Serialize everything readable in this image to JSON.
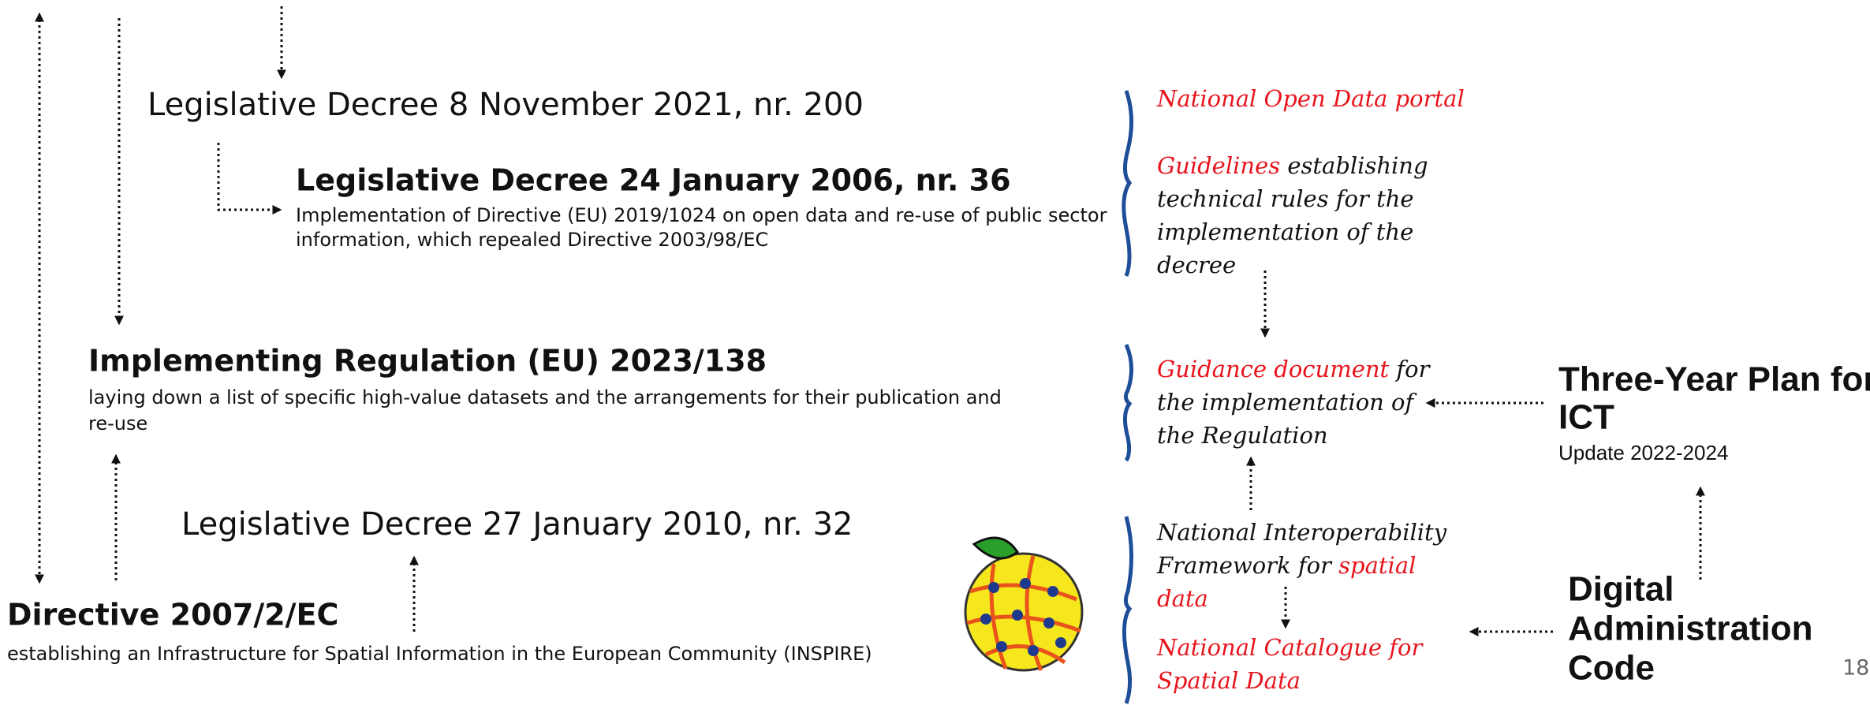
{
  "decree_2021": "Legislative Decree 8 November 2021, nr. 200",
  "decree_2006": {
    "title": "Legislative Decree 24 January 2006, nr. 36",
    "description": [
      "Implementation of Directive (EU) 2019/1024 on open data and re-use of public sector",
      "information, which repealed Directive 2003/98/EC"
    ]
  },
  "regulation": {
    "title": "Implementing Regulation (EU) 2023/138",
    "description": [
      "laying down a list of specific high-value datasets and the arrangements for their publication and",
      "re-use"
    ]
  },
  "decree_2010": "Legislative Decree 27 January 2010, nr. 32",
  "directive": {
    "title": "Directive 2007/2/EC",
    "description": "establishing an Infrastructure for Spatial Information in the European Community (INSPIRE)"
  },
  "notes": [
    [
      [
        {
          "text": "National Open Data portal",
          "color": "#e8141c"
        }
      ]
    ],
    [
      [
        {
          "text": "Guidelines",
          "color": "#e8141c"
        },
        {
          "text": " establishing",
          "color": "#111111"
        }
      ],
      [
        {
          "text": "technical rules for the",
          "color": "#111111"
        }
      ],
      [
        {
          "text": "implementation of the",
          "color": "#111111"
        }
      ],
      [
        {
          "text": "decree",
          "color": "#111111"
        }
      ]
    ],
    [
      [
        {
          "text": "Guidance document",
          "color": "#e8141c"
        },
        {
          "text": " for",
          "color": "#111111"
        }
      ],
      [
        {
          "text": "the implementation of",
          "color": "#111111"
        }
      ],
      [
        {
          "text": "the Regulation",
          "color": "#111111"
        }
      ]
    ],
    [
      [
        {
          "text": "National Interoperability",
          "color": "#111111"
        }
      ],
      [
        {
          "text": "Framework for ",
          "color": "#111111"
        },
        {
          "text": "spatial",
          "color": "#e8141c"
        }
      ],
      [
        {
          "text": "data",
          "color": "#e8141c"
        }
      ]
    ],
    [
      [
        {
          "text": "National Catalogue for",
          "color": "#e8141c"
        }
      ],
      [
        {
          "text": "Spatial Data",
          "color": "#e8141c"
        }
      ]
    ]
  ],
  "plan": {
    "title": [
      "Three-Year Plan for",
      "ICT"
    ],
    "subtitle": "Update 2022-2024"
  },
  "code": [
    "Digital",
    "Administration",
    "Code"
  ],
  "page_number": "18"
}
